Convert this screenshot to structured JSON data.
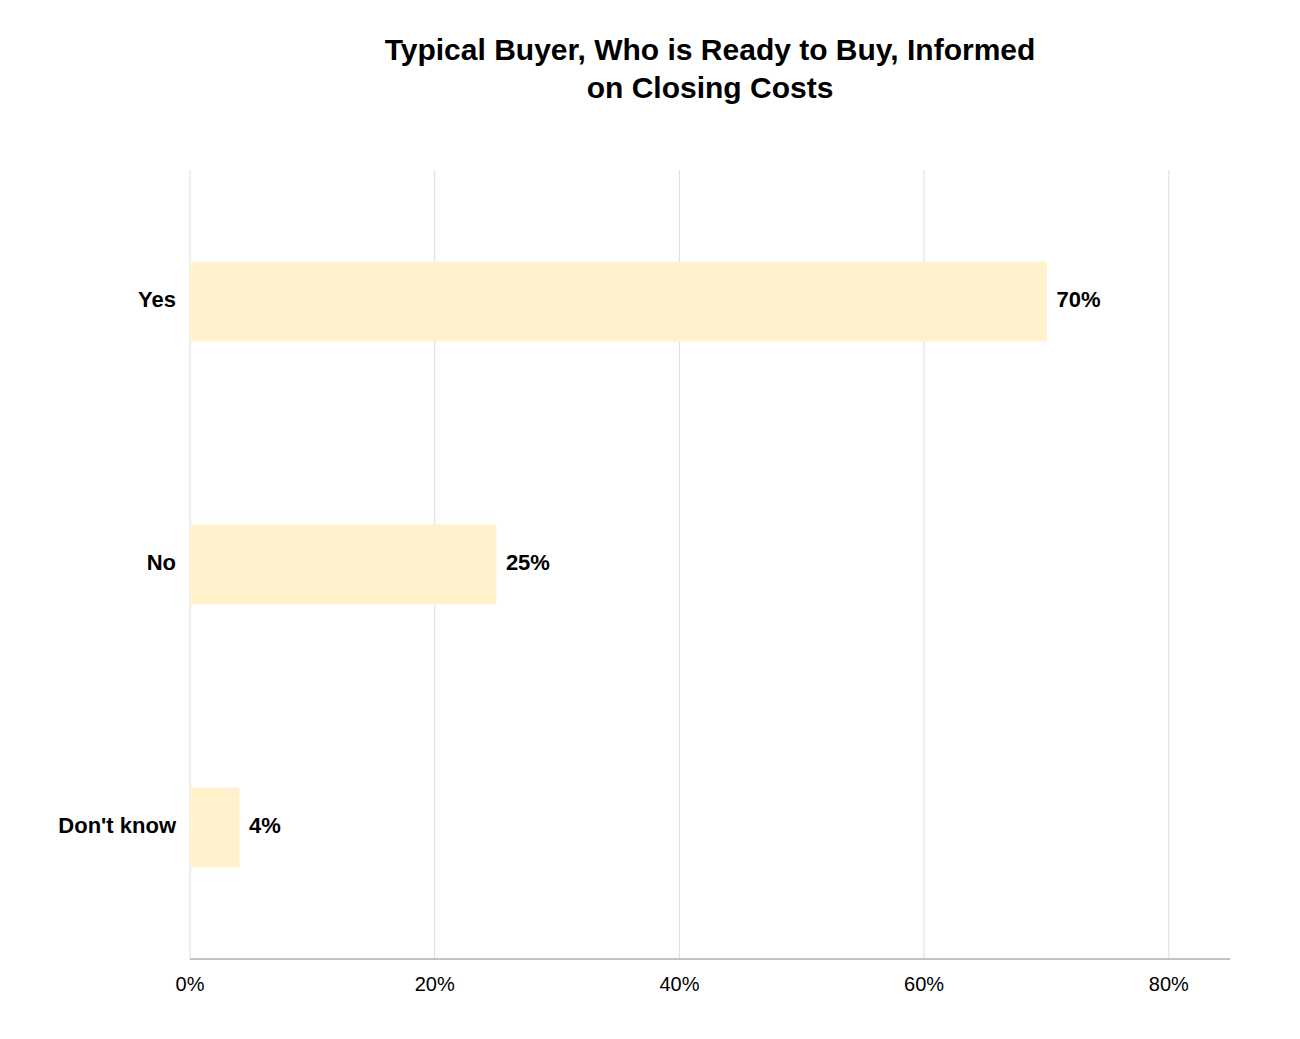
{
  "chart_data": {
    "type": "bar",
    "orientation": "horizontal",
    "title": "Typical Buyer, Who is Ready to Buy, Informed\non Closing Costs",
    "categories": [
      "Don't know",
      "No",
      "Yes"
    ],
    "values": [
      4,
      25,
      70
    ],
    "value_labels": [
      "4%",
      "25%",
      "70%"
    ],
    "data_labels": true,
    "color": "#FFF2CC",
    "xlim": [
      0,
      85
    ],
    "xticks": [
      {
        "value": 0,
        "label": "0%"
      },
      {
        "value": 20,
        "label": "20%"
      },
      {
        "value": 40,
        "label": "40%"
      },
      {
        "value": 60,
        "label": "60%"
      },
      {
        "value": 80,
        "label": "80%"
      }
    ],
    "grid": true
  }
}
